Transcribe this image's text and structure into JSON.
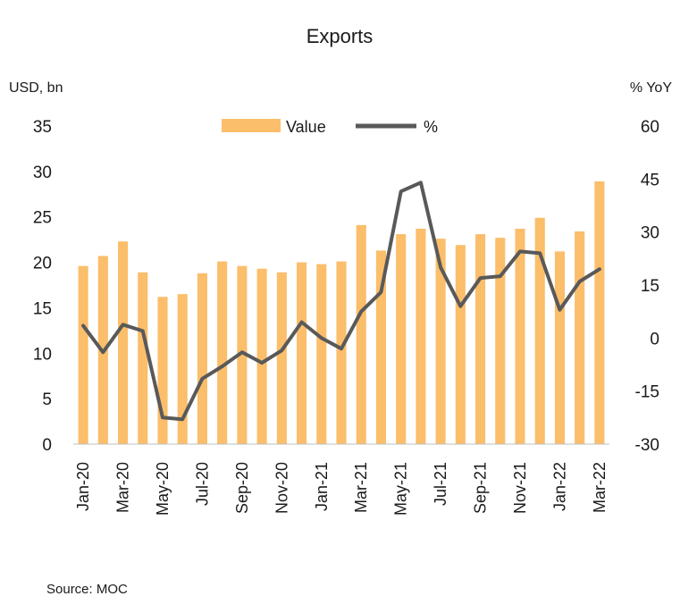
{
  "chart_data": {
    "type": "bar",
    "title": "Exports",
    "source": "Source:  MOC",
    "left_axis": {
      "unit": "USD, bn",
      "ylim": [
        0,
        35
      ],
      "ticks": [
        0,
        5,
        10,
        15,
        20,
        25,
        30,
        35
      ]
    },
    "right_axis": {
      "unit": "% YoY",
      "ylim": [
        -30,
        60
      ],
      "ticks": [
        -30,
        -15,
        0,
        15,
        30,
        45,
        60
      ]
    },
    "legend": {
      "position": "top-center",
      "items": [
        "Value",
        "%"
      ]
    },
    "colors": {
      "bar": "#FBBE6B",
      "line": "#595959"
    },
    "categories": [
      "Jan-20",
      "Feb-20",
      "Mar-20",
      "Apr-20",
      "May-20",
      "Jun-20",
      "Jul-20",
      "Aug-20",
      "Sep-20",
      "Oct-20",
      "Nov-20",
      "Dec-20",
      "Jan-21",
      "Feb-21",
      "Mar-21",
      "Apr-21",
      "May-21",
      "Jun-21",
      "Jul-21",
      "Aug-21",
      "Sep-21",
      "Oct-21",
      "Nov-21",
      "Dec-21",
      "Jan-22",
      "Feb-22",
      "Mar-22"
    ],
    "tick_labels": [
      "Jan-20",
      "Mar-20",
      "May-20",
      "Jul-20",
      "Sep-20",
      "Nov-20",
      "Jan-21",
      "Mar-21",
      "May-21",
      "Jul-21",
      "Sep-21",
      "Nov-21",
      "Jan-22",
      "Mar-22"
    ],
    "series": [
      {
        "name": "Value",
        "type": "bar",
        "axis": "left",
        "values": [
          19.6,
          20.7,
          22.3,
          18.9,
          16.2,
          16.5,
          18.8,
          20.1,
          19.6,
          19.3,
          18.9,
          20.0,
          19.8,
          20.1,
          24.1,
          21.3,
          23.1,
          23.7,
          22.6,
          21.9,
          23.1,
          22.7,
          23.7,
          24.9,
          21.2,
          23.4,
          28.9
        ]
      },
      {
        "name": "%",
        "type": "line",
        "axis": "right",
        "values": [
          3.5,
          -4.0,
          3.8,
          2.0,
          -22.5,
          -23.0,
          -11.5,
          -8.0,
          -4.0,
          -7.0,
          -3.5,
          4.5,
          0.0,
          -3.0,
          7.5,
          13.0,
          41.5,
          44.0,
          20.0,
          9.0,
          17.0,
          17.5,
          24.5,
          24.0,
          8.0,
          16.0,
          19.5
        ]
      }
    ]
  }
}
